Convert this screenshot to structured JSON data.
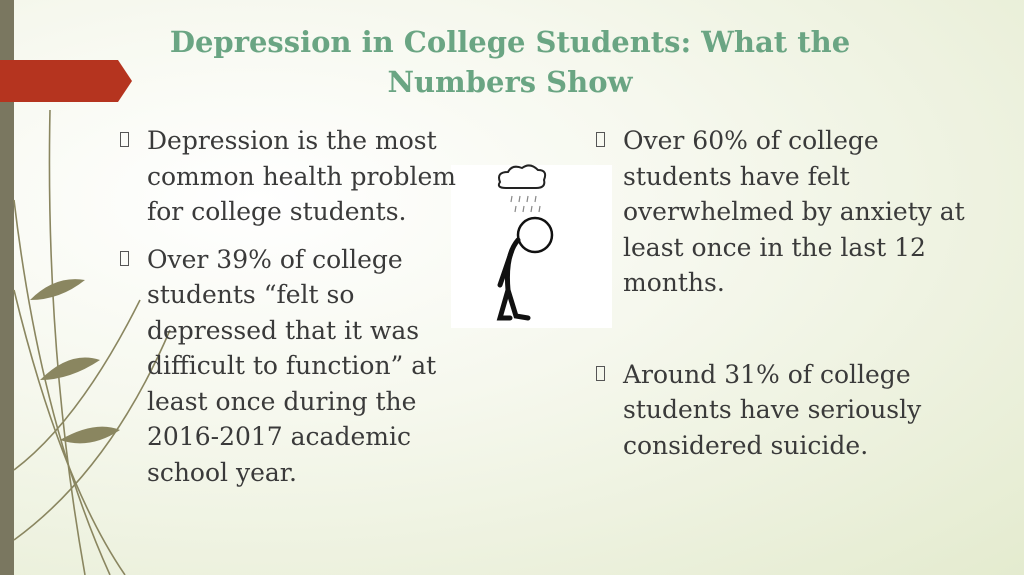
{
  "header": {
    "title": "Depression in College Students: What the Numbers Show"
  },
  "left_bullets": [
    "Depression is the most common health problem for college students.",
    "Over 39% of college students “felt so depressed that it was difficult to function” at least once during the 2016-2017 academic school year."
  ],
  "right_bullets": [
    "Over 60% of college students have felt overwhelmed by anxiety at least once in the last 12 months.",
    "Around 31% of college students have seriously considered suicide."
  ]
}
